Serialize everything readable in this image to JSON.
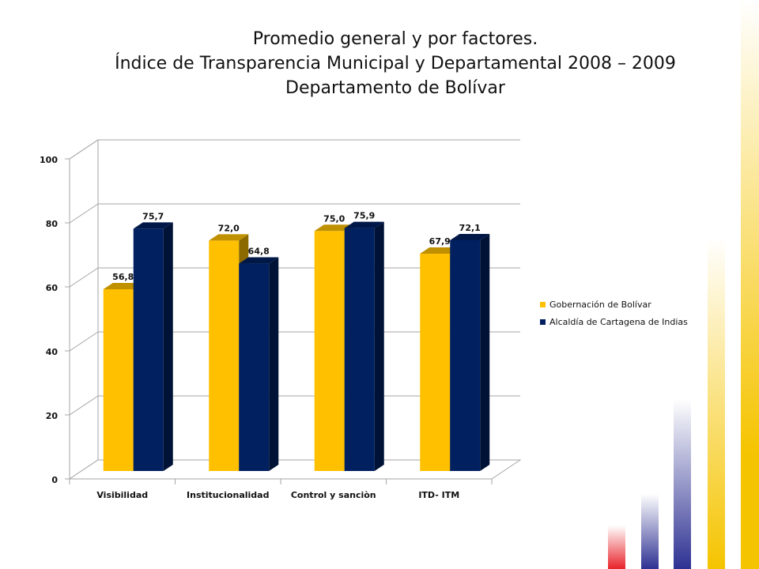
{
  "slide": {
    "title_lines": [
      "Promedio general y por factores.",
      "Índice de Transparencia Municipal y Departamental 2008 – 2009",
      "Departamento de Bolívar"
    ]
  },
  "colors": {
    "gobernacion": "#FFC000",
    "alcaldia": "#002060",
    "accent_gold": "#F5C400",
    "accent_navy": "#2E3192",
    "accent_red": "#E8232A"
  },
  "chart_data": {
    "type": "bar",
    "categories": [
      "Visibilidad",
      "Institucionalidad",
      "Control y sanciòn",
      "ITD- ITM"
    ],
    "series": [
      {
        "name": "Gobernación de Bolívar",
        "values": [
          56.8,
          72.0,
          75.0,
          67.9
        ],
        "labels": [
          "56,8",
          "72,0",
          "75,0",
          "67,9"
        ],
        "color": "#FFC000"
      },
      {
        "name": "Alcaldía de Cartagena de Indias",
        "values": [
          75.7,
          64.8,
          75.9,
          72.1
        ],
        "labels": [
          "75,7",
          "64,8",
          "75,9",
          "72,1"
        ],
        "color": "#002060"
      }
    ],
    "ylim": [
      0,
      100
    ],
    "yticks": [
      0,
      20,
      40,
      60,
      80,
      100
    ],
    "grid": true,
    "legend_position": "right",
    "style": "3d clustered column"
  }
}
